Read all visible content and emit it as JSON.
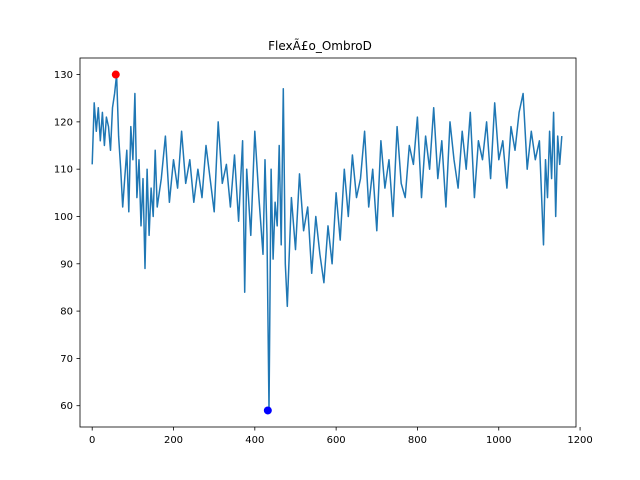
{
  "chart_data": {
    "type": "line",
    "title": "FlexÃ£o_OmbroD",
    "xlabel": "",
    "ylabel": "",
    "xlim": [
      -30,
      1190
    ],
    "ylim": [
      55.5,
      133.5
    ],
    "xticks": [
      0,
      200,
      400,
      600,
      800,
      1000,
      1200
    ],
    "yticks": [
      60,
      70,
      80,
      90,
      100,
      110,
      120,
      130
    ],
    "grid": false,
    "line_color": "#1f77b4",
    "series": [
      {
        "x": [
          0,
          5,
          10,
          15,
          20,
          25,
          30,
          35,
          40,
          45,
          50,
          55,
          60,
          65,
          70,
          75,
          80,
          85,
          90,
          95,
          100,
          105,
          110,
          115,
          120,
          125,
          130,
          135,
          140,
          145,
          150,
          155,
          160,
          170,
          180,
          190,
          200,
          210,
          220,
          230,
          240,
          250,
          260,
          270,
          280,
          290,
          300,
          310,
          320,
          330,
          340,
          350,
          360,
          370,
          375,
          380,
          390,
          400,
          410,
          420,
          425,
          430,
          435,
          440,
          445,
          450,
          455,
          460,
          465,
          470,
          475,
          480,
          490,
          500,
          510,
          520,
          530,
          540,
          550,
          560,
          570,
          580,
          590,
          600,
          610,
          620,
          630,
          640,
          650,
          660,
          670,
          680,
          690,
          700,
          710,
          720,
          730,
          740,
          750,
          760,
          770,
          780,
          790,
          800,
          810,
          820,
          830,
          840,
          850,
          860,
          870,
          880,
          890,
          900,
          910,
          920,
          930,
          940,
          950,
          960,
          970,
          980,
          990,
          1000,
          1010,
          1020,
          1030,
          1040,
          1050,
          1060,
          1070,
          1080,
          1090,
          1100,
          1110,
          1115,
          1120,
          1125,
          1130,
          1135,
          1140,
          1145,
          1150,
          1155
        ],
        "values": [
          111,
          124,
          118,
          123,
          116,
          122,
          115,
          121,
          119,
          114,
          123,
          126,
          130,
          117,
          110,
          102,
          108,
          114,
          101,
          119,
          112,
          126,
          104,
          112,
          98,
          108,
          89,
          110,
          96,
          106,
          100,
          114,
          102,
          108,
          117,
          103,
          112,
          106,
          118,
          107,
          112,
          103,
          110,
          104,
          115,
          108,
          101,
          120,
          107,
          111,
          102,
          113,
          99,
          116,
          84,
          110,
          96,
          118,
          104,
          92,
          112,
          96,
          59,
          110,
          91,
          103,
          98,
          115,
          94,
          127,
          90,
          81,
          104,
          93,
          109,
          97,
          102,
          88,
          100,
          92,
          86,
          98,
          90,
          105,
          95,
          110,
          100,
          113,
          104,
          108,
          118,
          102,
          110,
          97,
          116,
          106,
          112,
          100,
          119,
          107,
          104,
          115,
          111,
          121,
          104,
          117,
          110,
          123,
          108,
          116,
          102,
          120,
          112,
          106,
          118,
          110,
          122,
          104,
          116,
          112,
          120,
          108,
          124,
          112,
          116,
          106,
          119,
          114,
          122,
          126,
          110,
          118,
          112,
          116,
          94,
          112,
          104,
          118,
          108,
          122,
          100,
          117,
          111,
          117
        ]
      }
    ],
    "annotations": [
      {
        "label": "max",
        "x": 58,
        "y": 130,
        "color": "#ff0000"
      },
      {
        "label": "min",
        "x": 432,
        "y": 59,
        "color": "#0000ff"
      }
    ]
  }
}
